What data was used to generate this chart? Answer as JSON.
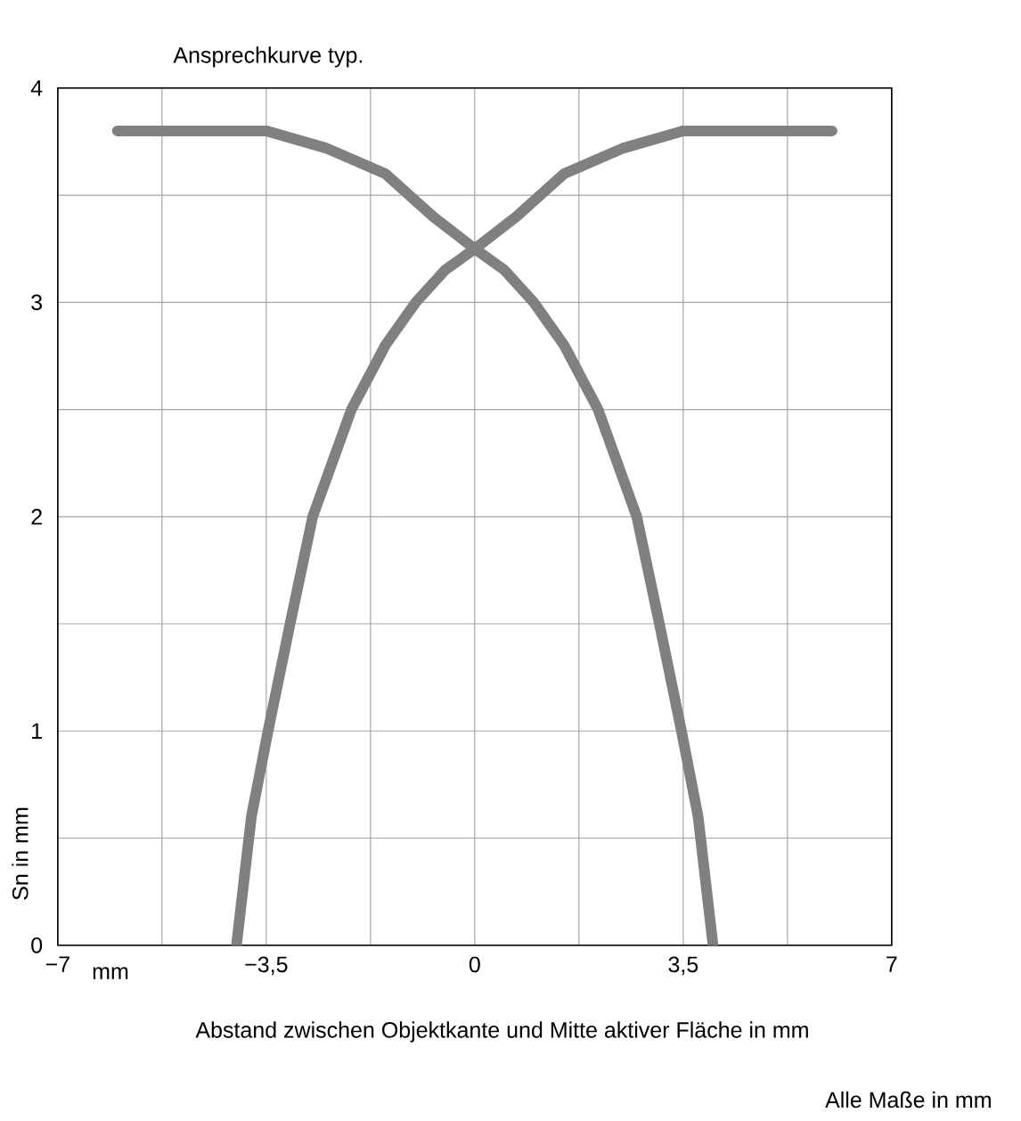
{
  "chart_data": {
    "type": "line",
    "title": "Ansprechkurve typ.",
    "xlabel": "Abstand zwischen Objektkante und Mitte aktiver Fläche in mm",
    "ylabel": "Sn in mm",
    "annotations": [
      "mm",
      "Alle Maße in mm"
    ],
    "series": [
      {
        "color": "#808080",
        "x": [
          -4,
          -3.75,
          -3.47,
          -3.1,
          -2.72,
          -2.07,
          -1.5,
          -0.99,
          -0.5,
          0,
          0.7,
          1.5,
          2.5,
          3.5,
          6
        ],
        "values": [
          0,
          0.6,
          1,
          1.5,
          2,
          2.5,
          2.8,
          3,
          3.15,
          3.25,
          3.4,
          3.6,
          3.72,
          3.8,
          3.8
        ]
      },
      {
        "color": "#808080",
        "x": [
          -6,
          -3.5,
          -2.5,
          -1.5,
          -0.7,
          0,
          0.5,
          0.99,
          1.5,
          2.07,
          2.72,
          3.1,
          3.47,
          3.75,
          4
        ],
        "values": [
          3.8,
          3.8,
          3.72,
          3.6,
          3.4,
          3.25,
          3.15,
          3,
          2.8,
          2.5,
          2,
          1.5,
          1,
          0.6,
          0
        ]
      }
    ],
    "xlim": [
      -7,
      7
    ],
    "ylim": [
      0,
      4
    ],
    "xticks": [
      {
        "value": -7,
        "label": "−7"
      },
      {
        "value": -5.25,
        "label": null
      },
      {
        "value": -3.5,
        "label": "−3,5"
      },
      {
        "value": -1.75,
        "label": null
      },
      0,
      {
        "value": 1.75,
        "label": null
      },
      {
        "value": 3.5,
        "label": "3,5"
      },
      {
        "value": 5.25,
        "label": null
      },
      7
    ],
    "yticks": [
      0,
      {
        "value": 0.5,
        "label": null
      },
      1,
      {
        "value": 1.5,
        "label": null
      },
      2,
      {
        "value": 2.5,
        "label": null
      },
      3,
      {
        "value": 3.5,
        "label": null
      },
      4
    ],
    "grid": true,
    "line_style": "solid"
  }
}
